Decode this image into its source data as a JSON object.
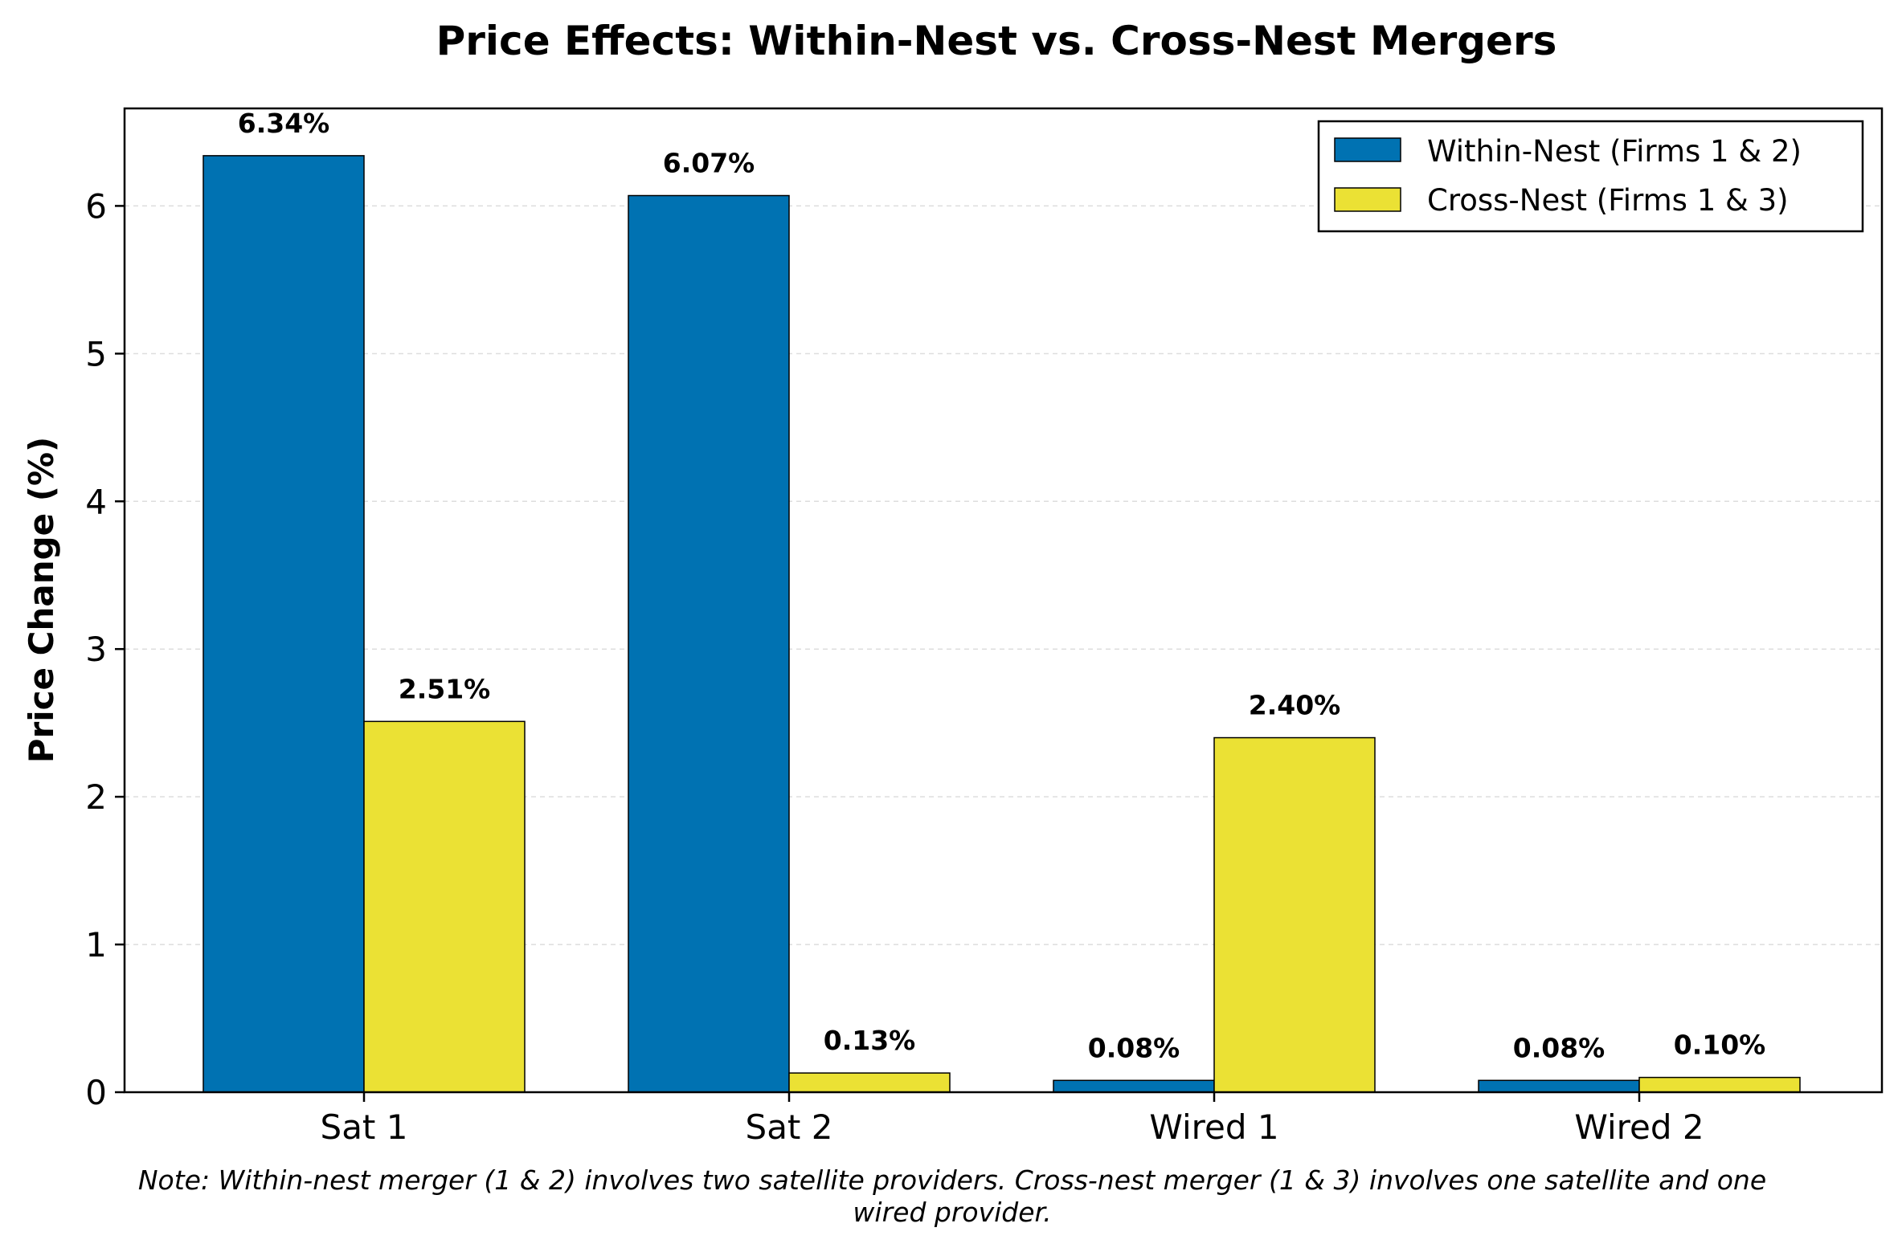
{
  "chart_data": {
    "type": "bar",
    "title": "Price Effects: Within-Nest vs. Cross-Nest Mergers",
    "xlabel": "",
    "ylabel": "Price Change (%)",
    "categories": [
      "Sat 1",
      "Sat 2",
      "Wired 1",
      "Wired 2"
    ],
    "series": [
      {
        "name": "Within-Nest (Firms 1 & 2)",
        "color": "#0072b2",
        "values": [
          6.34,
          6.07,
          0.08,
          0.08
        ],
        "labels": [
          "6.34%",
          "6.07%",
          "0.08%",
          "0.08%"
        ]
      },
      {
        "name": "Cross-Nest (Firms 1 & 3)",
        "color": "#ebe134",
        "values": [
          2.51,
          0.13,
          2.4,
          0.1
        ],
        "labels": [
          "2.51%",
          "0.13%",
          "2.40%",
          "0.10%"
        ]
      }
    ],
    "ylim": [
      0,
      6.66
    ],
    "yticks": [
      0,
      1,
      2,
      3,
      4,
      5,
      6
    ],
    "ytick_labels": [
      "0",
      "1",
      "2",
      "3",
      "4",
      "5",
      "6"
    ],
    "grid": "y-dashed",
    "legend_position": "top-right",
    "note_lines": [
      "Note: Within-nest merger (1 & 2) involves two satellite providers. Cross-nest merger (1 & 3) involves one satellite and one",
      "wired provider."
    ]
  }
}
